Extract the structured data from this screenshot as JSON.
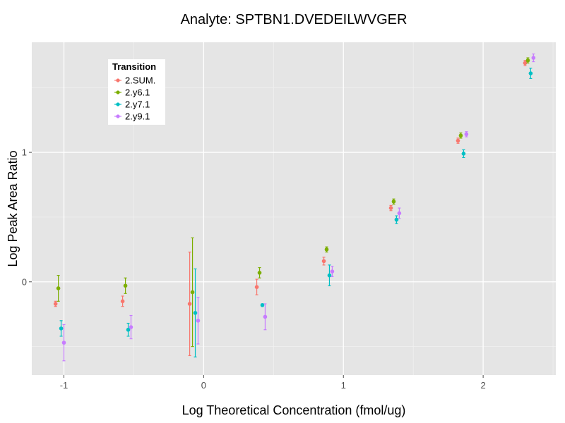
{
  "chart_data": {
    "type": "scatter",
    "title": "Analyte: SPTBN1.DVEDEILWVGER",
    "xlabel": "Log Theoretical Concentration (fmol/ug)",
    "ylabel": "Log Peak Area Ratio",
    "xlim": [
      -1.23,
      2.52
    ],
    "ylim": [
      -0.72,
      1.85
    ],
    "xticks": [
      -1,
      0,
      1,
      2
    ],
    "xtick_labels": [
      "-1",
      "0",
      "1",
      "2"
    ],
    "yticks": [
      0,
      1
    ],
    "ytick_labels": [
      "0",
      "1"
    ],
    "grid": true,
    "error_bars": true,
    "legend": {
      "title": "Transition",
      "position": "top-left"
    },
    "series": [
      {
        "name": "2.SUM.",
        "color": "#F8766D",
        "x": [
          -1.06,
          -0.58,
          -0.1,
          0.38,
          0.86,
          1.34,
          1.82,
          2.3
        ],
        "y": [
          -0.17,
          -0.15,
          -0.17,
          -0.04,
          0.16,
          0.57,
          1.09,
          1.69
        ],
        "err": [
          0.02,
          0.04,
          0.4,
          0.06,
          0.03,
          0.02,
          0.02,
          0.02
        ]
      },
      {
        "name": "2.y6.1",
        "color": "#7CAE00",
        "x": [
          -1.04,
          -0.56,
          -0.08,
          0.4,
          0.88,
          1.36,
          1.84,
          2.32
        ],
        "y": [
          -0.05,
          -0.03,
          -0.08,
          0.07,
          0.25,
          0.62,
          1.13,
          1.71
        ],
        "err": [
          0.1,
          0.06,
          0.42,
          0.04,
          0.02,
          0.02,
          0.02,
          0.02
        ]
      },
      {
        "name": "2.y7.1",
        "color": "#00BFC4",
        "x": [
          -1.02,
          -0.54,
          -0.06,
          0.42,
          0.9,
          1.38,
          1.86,
          2.34
        ],
        "y": [
          -0.36,
          -0.37,
          -0.24,
          -0.18,
          0.05,
          0.48,
          0.99,
          1.61
        ],
        "err": [
          0.06,
          0.05,
          0.34,
          0.01,
          0.08,
          0.03,
          0.03,
          0.04
        ]
      },
      {
        "name": "2.y9.1",
        "color": "#C77CFF",
        "x": [
          -1.0,
          -0.52,
          -0.04,
          0.44,
          0.92,
          1.4,
          1.88,
          2.36
        ],
        "y": [
          -0.47,
          -0.35,
          -0.3,
          -0.27,
          0.08,
          0.53,
          1.14,
          1.73
        ],
        "err": [
          0.14,
          0.09,
          0.18,
          0.1,
          0.04,
          0.04,
          0.02,
          0.03
        ]
      }
    ]
  }
}
